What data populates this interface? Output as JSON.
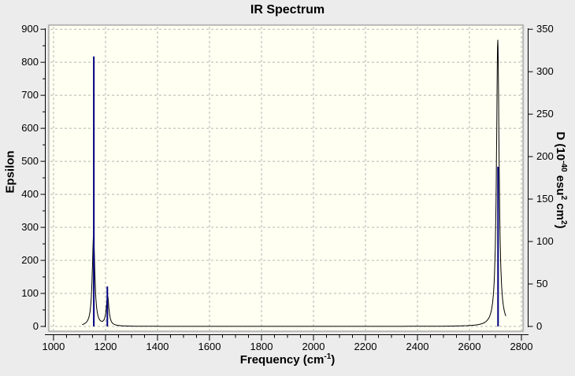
{
  "title": "IR Spectrum",
  "axis_labels": {
    "left": "Epsilon",
    "bottom_p1": "Frequency (cm",
    "bottom_sup": "-1",
    "bottom_p2": ")",
    "right_p1": "D (10",
    "right_sup1": "-40",
    "right_p2": " esu",
    "right_sup2": "2",
    "right_p3": " cm",
    "right_sup3": "2",
    "right_p4": ")"
  },
  "colors": {
    "window_bg": "#ececec",
    "plot_bg": "#fffff2",
    "grid": "#b4b4b4",
    "frame": "#8f8f8f",
    "frame_highlight": "#dcdcdc",
    "axis": "#000000",
    "curve": "#000000",
    "stick": "#000080",
    "text": "#000000"
  },
  "chart_data": {
    "type": "line",
    "title": "IR Spectrum",
    "xlabel": "Frequency (cm^-1)",
    "ylabel_left": "Epsilon",
    "ylabel_right": "D (10^-40 esu^2 cm^2)",
    "x_axis": {
      "min": 1000,
      "max": 2800,
      "major_step": 200,
      "minor_step": 50,
      "tick_labels": [
        1000,
        1200,
        1400,
        1600,
        1800,
        2000,
        2200,
        2400,
        2600,
        2800
      ]
    },
    "y_axis_left": {
      "min": 0,
      "max": 900,
      "major_step": 100,
      "minor_step": 50,
      "tick_labels": [
        0,
        100,
        200,
        300,
        400,
        500,
        600,
        700,
        800,
        900
      ]
    },
    "y_axis_right": {
      "min": 0,
      "max": 350,
      "major_step": 50,
      "tick_labels": [
        0,
        50,
        100,
        150,
        200,
        250,
        300,
        350
      ]
    },
    "grid": {
      "show": true,
      "style": "dashed",
      "x_interval": 200,
      "y_interval_epsilon": 100
    },
    "legend": {
      "show": false
    },
    "series": [
      {
        "name": "epsilon-spectrum-curve",
        "style": "broadened-peaks",
        "axis": "left",
        "color": "#000000",
        "hwhm": 6,
        "draw_from": 1110,
        "draw_to": 2740,
        "peaks": [
          {
            "frequency": 1154,
            "epsilon": 272
          },
          {
            "frequency": 1208,
            "epsilon": 90
          },
          {
            "frequency": 2709,
            "epsilon": 868
          }
        ]
      },
      {
        "name": "dipole-strength-sticks",
        "style": "stick",
        "axis": "right",
        "color": "#000080",
        "points": [
          {
            "frequency": 1155,
            "D": 318
          },
          {
            "frequency": 1207,
            "D": 47
          },
          {
            "frequency": 2710,
            "D": 188
          }
        ]
      }
    ]
  }
}
